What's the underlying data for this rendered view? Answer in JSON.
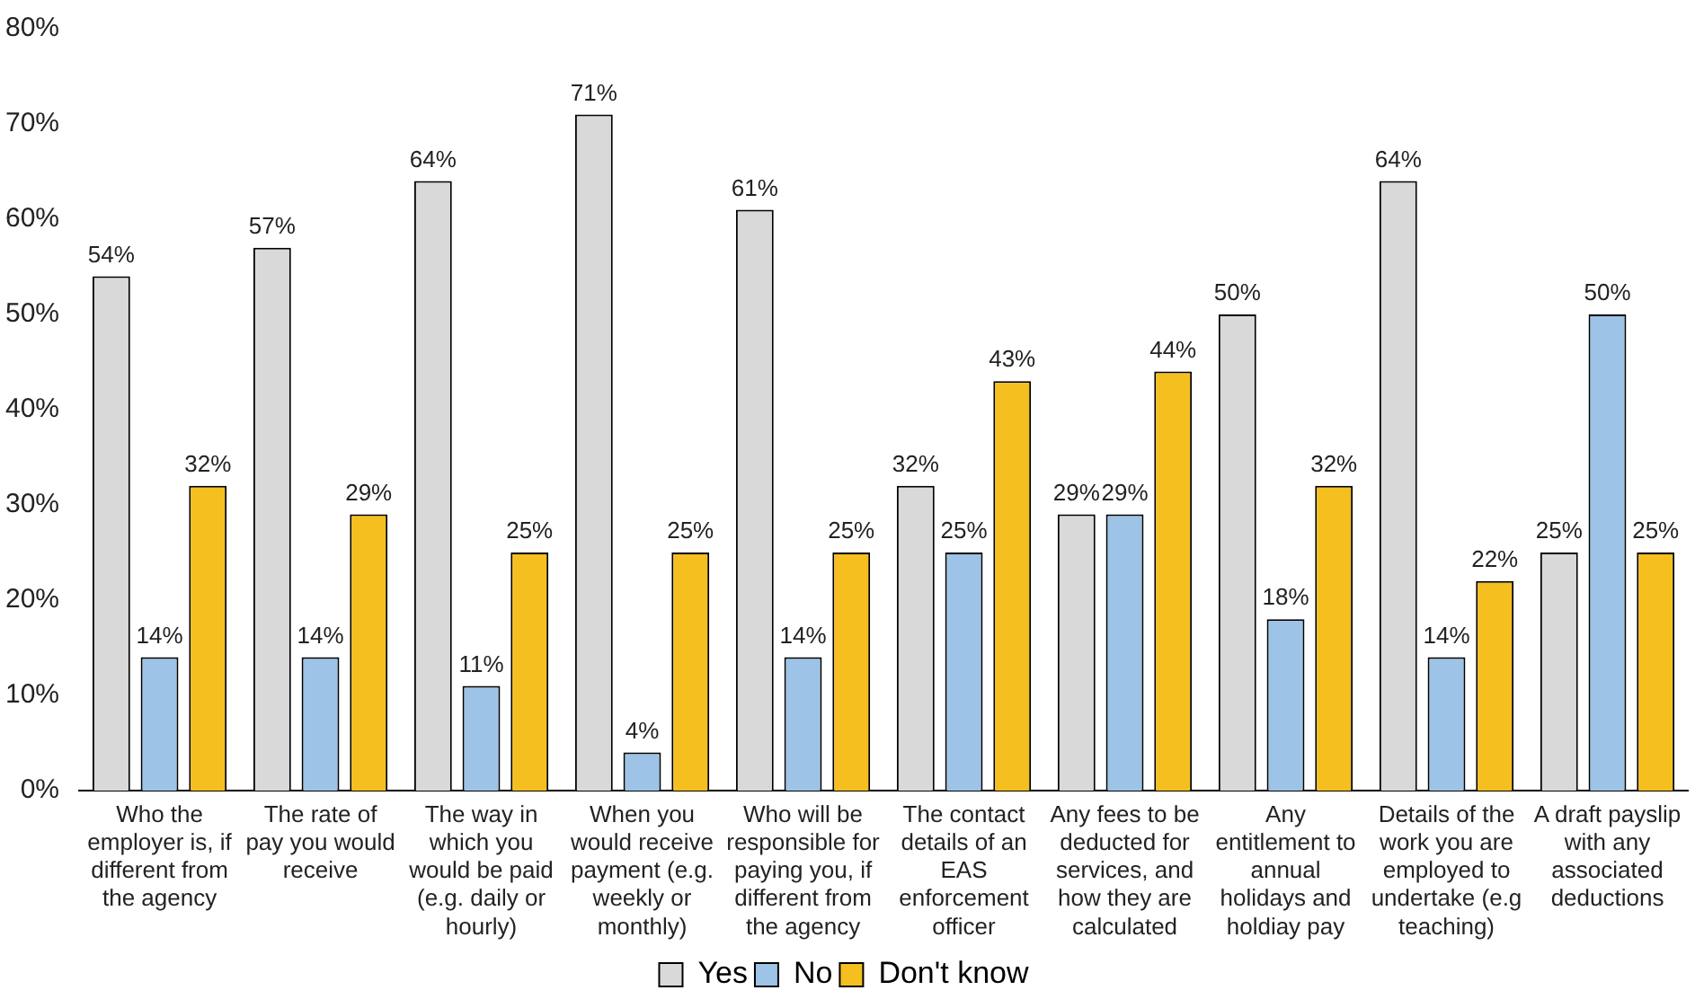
{
  "chart_data": {
    "type": "bar",
    "categories": [
      "Who the employer is, if different from the agency",
      "The rate of pay you would receive",
      "The way in which you would be paid (e.g. daily or hourly)",
      "When you would receive payment (e.g. weekly or monthly)",
      "Who will be responsible for paying you, if different from the agency",
      "The contact details of an EAS enforcement officer",
      "Any fees to be deducted for services, and how they are calculated",
      "Any entitlement to annual holidays and holdiay pay",
      "Details of the work you are employed to undertake (e.g teaching)",
      "A draft payslip with any associated deductions"
    ],
    "series": [
      {
        "name": "Yes",
        "color": "#d9d9d9",
        "values": [
          54,
          57,
          64,
          71,
          61,
          32,
          29,
          50,
          64,
          25
        ],
        "value_labels": [
          "54%",
          "57%",
          "64%",
          "71%",
          "61%",
          "32%",
          "29%",
          "50%",
          "64%",
          "25%"
        ]
      },
      {
        "name": "No",
        "color": "#9dc3e6",
        "values": [
          14,
          14,
          11,
          4,
          14,
          25,
          29,
          18,
          14,
          50
        ],
        "value_labels": [
          "14%",
          "14%",
          "11%",
          "4%",
          "14%",
          "25%",
          "29%",
          "18%",
          "14%",
          "50%"
        ]
      },
      {
        "name": "Don't know",
        "color": "#f5bf1f",
        "values": [
          32,
          29,
          25,
          25,
          25,
          43,
          44,
          32,
          22,
          25
        ],
        "value_labels": [
          "32%",
          "29%",
          "25%",
          "25%",
          "25%",
          "43%",
          "44%",
          "32%",
          "22%",
          "25%"
        ]
      }
    ],
    "ylim": [
      0,
      80
    ],
    "yticks": [
      {
        "value": 0,
        "label": "0%"
      },
      {
        "value": 10,
        "label": "10%"
      },
      {
        "value": 20,
        "label": "20%"
      },
      {
        "value": 30,
        "label": "30%"
      },
      {
        "value": 40,
        "label": "40%"
      },
      {
        "value": 50,
        "label": "50%"
      },
      {
        "value": 60,
        "label": "60%"
      },
      {
        "value": 70,
        "label": "70%"
      },
      {
        "value": 80,
        "label": "80%"
      }
    ],
    "grid": false,
    "legend": "bottom"
  }
}
